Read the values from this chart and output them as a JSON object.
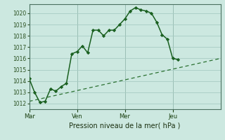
{
  "background_color": "#cce8e0",
  "grid_color": "#a8ccc4",
  "line_color": "#1a6020",
  "line2_color": "#2a7030",
  "title": "Pression niveau de la mer( hPa )",
  "ylim": [
    1011.5,
    1020.8
  ],
  "yticks": [
    1012,
    1013,
    1014,
    1015,
    1016,
    1017,
    1018,
    1019,
    1020
  ],
  "xtick_labels": [
    "Mar",
    "Ven",
    "Mer",
    "Jeu"
  ],
  "xtick_positions": [
    0,
    9,
    18,
    27
  ],
  "vline_positions": [
    0,
    9,
    18,
    27
  ],
  "xlim": [
    0,
    36
  ],
  "line1_x": [
    0,
    1,
    2,
    3,
    4,
    5,
    6,
    7,
    8,
    9,
    10,
    11,
    12,
    13,
    14,
    15,
    16,
    17,
    18,
    19,
    20,
    21,
    22,
    23,
    24,
    25,
    26,
    27,
    28
  ],
  "line1_y": [
    1014.2,
    1013.0,
    1012.1,
    1012.2,
    1013.3,
    1013.1,
    1013.5,
    1013.8,
    1016.4,
    1016.6,
    1017.1,
    1016.5,
    1018.5,
    1018.5,
    1018.0,
    1018.5,
    1018.5,
    1019.0,
    1019.5,
    1020.2,
    1020.5,
    1020.3,
    1020.2,
    1020.0,
    1019.2,
    1018.1,
    1017.7,
    1016.0,
    1015.9
  ],
  "line2_x": [
    0,
    36
  ],
  "line2_y": [
    1012.2,
    1016.0
  ]
}
